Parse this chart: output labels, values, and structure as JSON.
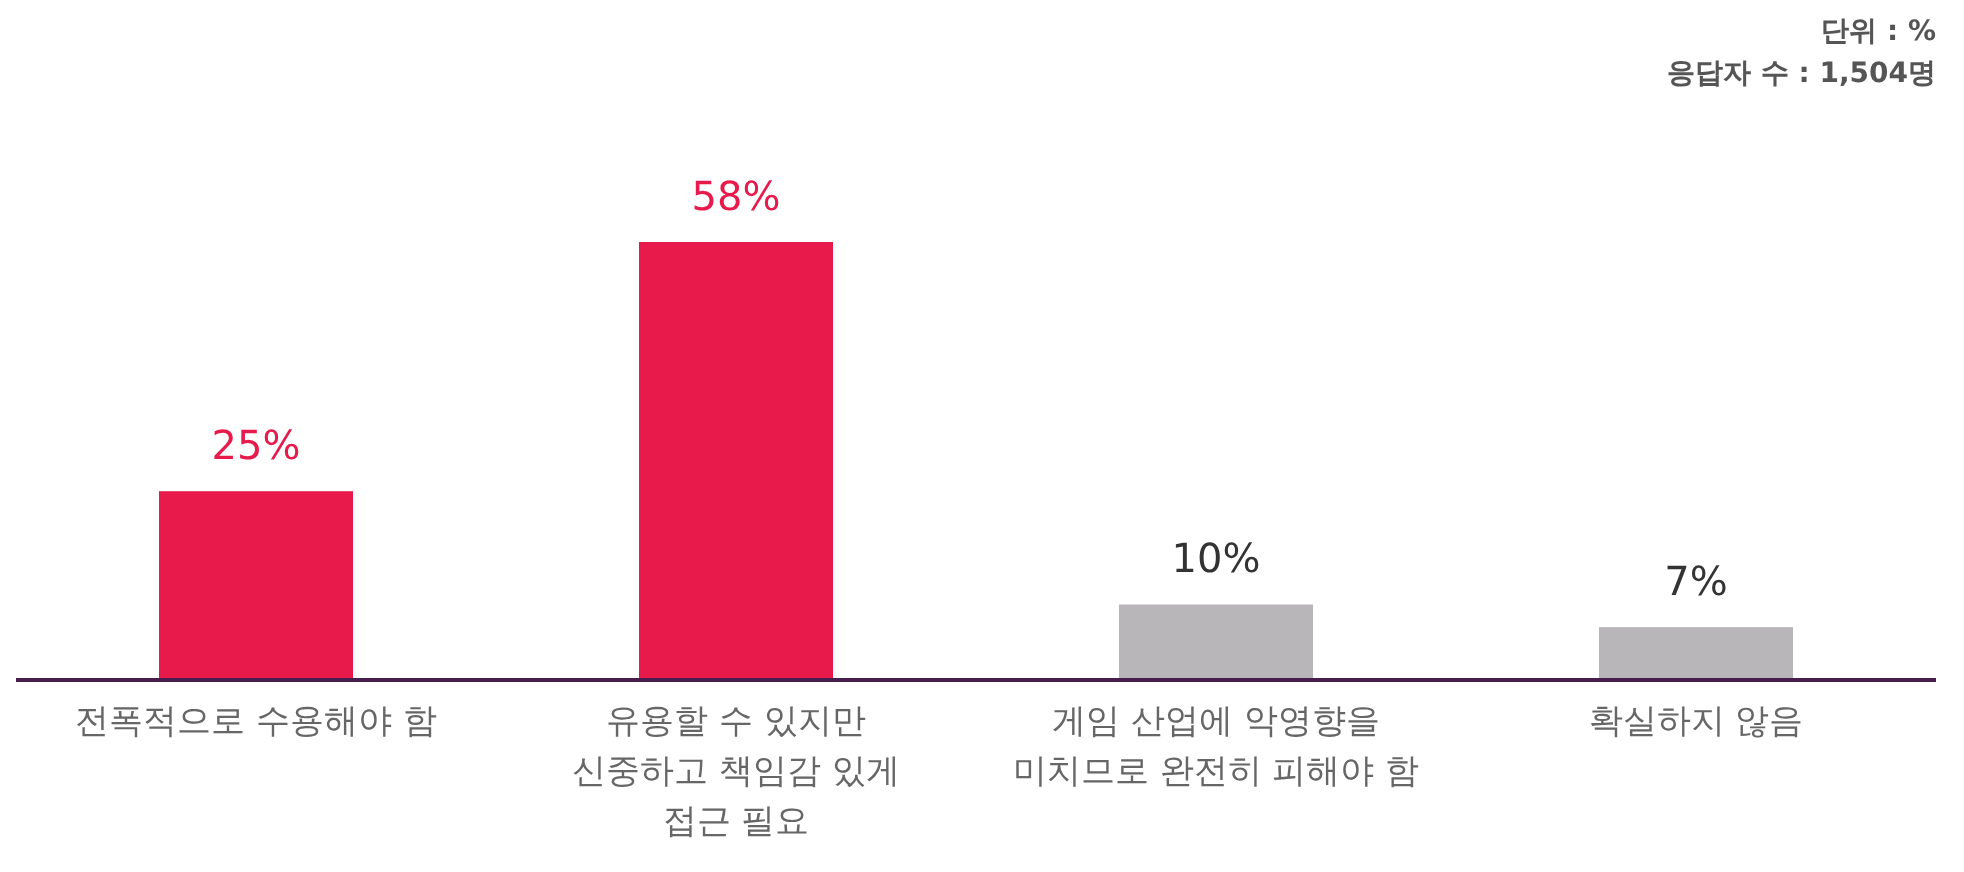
{
  "chart_data": {
    "type": "bar",
    "categories": [
      "전폭적으로 수용해야 함",
      "유용할 수 있지만\n신중하고 책임감 있게\n접근 필요",
      "게임 산업에 악영향을\n미치므로 완전히 피해야 함",
      "확실하지 않음"
    ],
    "values": [
      25,
      58,
      10,
      7
    ],
    "value_labels": [
      "25%",
      "58%",
      "10%",
      "7%"
    ],
    "colors": [
      "#e8194b",
      "#e8194b",
      "#b8b6b9",
      "#b8b6b9"
    ],
    "annotations": [
      "단위 : %",
      "응답자 수 : 1,504명"
    ]
  }
}
